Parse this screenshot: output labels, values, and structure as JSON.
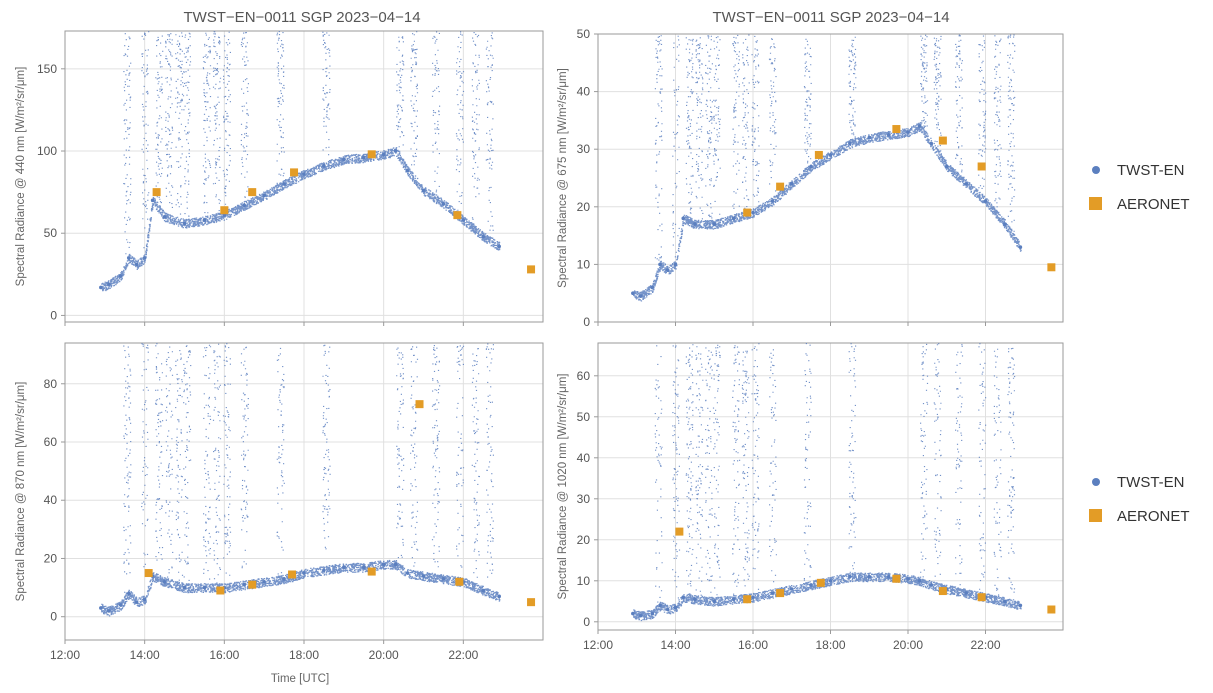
{
  "colors": {
    "twst": "#5b7fbf",
    "aeronet": "#e39c26"
  },
  "legends": [
    {
      "twst_label": "TWST-EN",
      "aeronet_label": "AERONET"
    },
    {
      "twst_label": "TWST-EN",
      "aeronet_label": "AERONET"
    }
  ],
  "chart_data": [
    {
      "type": "scatter",
      "title": "TWST−EN−0011 SGP 2023−04−14",
      "ylabel": "Spectral Radiance @ 440 nm [W/m²/sr/μm]",
      "xlabel": "",
      "xlim": [
        12.0,
        24.0
      ],
      "ylim": [
        -4,
        173
      ],
      "xticks": [
        12,
        14,
        16,
        18,
        20,
        22
      ],
      "xtick_labels": [
        "",
        "",
        "",
        "",
        "",
        ""
      ],
      "yticks": [
        0,
        50,
        100,
        150
      ],
      "ytick_labels": [
        "0",
        "50",
        "100",
        "150"
      ],
      "grid": true,
      "series": [
        {
          "name": "TWST-EN",
          "x": [
            12.9,
            13.1,
            13.4,
            13.6,
            13.8,
            14.0,
            14.2,
            14.5,
            15.0,
            15.5,
            16.0,
            16.5,
            17.0,
            17.5,
            18.0,
            18.5,
            19.0,
            19.5,
            20.0,
            20.3,
            20.6,
            21.0,
            21.5,
            22.0,
            22.5,
            22.9
          ],
          "y": [
            17,
            19,
            24,
            35,
            31,
            35,
            70,
            60,
            56,
            58,
            61,
            67,
            73,
            80,
            86,
            91,
            95,
            96,
            98,
            100,
            88,
            76,
            68,
            58,
            48,
            42
          ]
        },
        {
          "name": "AERONET",
          "x": [
            14.3,
            16.0,
            16.7,
            17.75,
            19.7,
            21.85,
            23.7
          ],
          "y": [
            75,
            64,
            75,
            87,
            98,
            61,
            28
          ]
        }
      ]
    },
    {
      "type": "scatter",
      "title": "TWST−EN−0011 SGP 2023−04−14",
      "ylabel": "Spectral Radiance @ 675 nm [W/m²/sr/μm]",
      "xlabel": "",
      "xlim": [
        12.0,
        24.0
      ],
      "ylim": [
        0,
        50
      ],
      "xticks": [
        12,
        14,
        16,
        18,
        20,
        22
      ],
      "xtick_labels": [
        "",
        "",
        "",
        "",
        "",
        ""
      ],
      "yticks": [
        0,
        10,
        20,
        30,
        40,
        50
      ],
      "ytick_labels": [
        "0",
        "10",
        "20",
        "30",
        "40",
        "50"
      ],
      "grid": true,
      "series": [
        {
          "name": "TWST-EN",
          "x": [
            12.9,
            13.1,
            13.4,
            13.6,
            13.8,
            14.0,
            14.2,
            14.5,
            15.0,
            15.5,
            16.0,
            16.5,
            17.0,
            17.5,
            18.0,
            18.5,
            19.0,
            19.5,
            20.0,
            20.3,
            20.6,
            21.0,
            21.5,
            22.0,
            22.5,
            22.9
          ],
          "y": [
            5,
            4.5,
            6,
            10,
            9,
            10,
            18,
            17,
            17,
            18,
            19,
            21,
            24,
            27,
            29,
            31,
            32,
            32.5,
            33,
            34,
            31,
            27,
            24,
            21,
            17,
            13
          ]
        },
        {
          "name": "AERONET",
          "x": [
            15.85,
            16.7,
            17.7,
            19.7,
            20.9,
            21.9,
            23.7
          ],
          "y": [
            19,
            23.5,
            29,
            33.5,
            31.5,
            27,
            9.5
          ]
        }
      ]
    },
    {
      "type": "scatter",
      "title": "",
      "ylabel": "Spectral Radiance @ 870 nm [W/m²/sr/μm]",
      "xlabel": "Time [UTC]",
      "xlim": [
        12.0,
        24.0
      ],
      "ylim": [
        -8,
        94
      ],
      "xticks": [
        12,
        14,
        16,
        18,
        20,
        22
      ],
      "xtick_labels": [
        "12:00",
        "14:00",
        "16:00",
        "18:00",
        "20:00",
        "22:00"
      ],
      "yticks": [
        0,
        20,
        40,
        60,
        80
      ],
      "ytick_labels": [
        "0",
        "20",
        "40",
        "60",
        "80"
      ],
      "grid": true,
      "series": [
        {
          "name": "TWST-EN",
          "x": [
            12.9,
            13.1,
            13.4,
            13.6,
            13.8,
            14.0,
            14.2,
            14.5,
            15.0,
            15.5,
            16.0,
            16.5,
            17.0,
            17.5,
            18.0,
            18.5,
            19.0,
            19.5,
            20.0,
            20.3,
            20.6,
            21.0,
            21.5,
            22.0,
            22.5,
            22.9
          ],
          "y": [
            3,
            2,
            4,
            8,
            5,
            6,
            14,
            12,
            10,
            10,
            10,
            11,
            12,
            13,
            15,
            16,
            17,
            17,
            18,
            18,
            15,
            14,
            13,
            12,
            9,
            7
          ]
        },
        {
          "name": "AERONET",
          "x": [
            14.1,
            15.9,
            16.7,
            17.7,
            19.7,
            20.9,
            21.9,
            23.7
          ],
          "y": [
            15,
            9,
            11,
            14.5,
            15.5,
            73,
            12,
            5
          ]
        }
      ]
    },
    {
      "type": "scatter",
      "title": "",
      "ylabel": "Spectral Radiance @ 1020 nm [W/m²/sr/μm]",
      "xlabel": "",
      "xlim": [
        12.0,
        24.0
      ],
      "ylim": [
        -2,
        68
      ],
      "xticks": [
        12,
        14,
        16,
        18,
        20,
        22
      ],
      "xtick_labels": [
        "12:00",
        "14:00",
        "16:00",
        "18:00",
        "20:00",
        "22:00"
      ],
      "yticks": [
        0,
        10,
        20,
        30,
        40,
        50,
        60
      ],
      "ytick_labels": [
        "0",
        "10",
        "20",
        "30",
        "40",
        "50",
        "60"
      ],
      "grid": true,
      "series": [
        {
          "name": "TWST-EN",
          "x": [
            12.9,
            13.1,
            13.4,
            13.6,
            13.8,
            14.0,
            14.2,
            14.5,
            15.0,
            15.5,
            16.0,
            16.5,
            17.0,
            17.5,
            18.0,
            18.5,
            19.0,
            19.5,
            20.0,
            20.3,
            20.6,
            21.0,
            21.5,
            22.0,
            22.5,
            22.9
          ],
          "y": [
            2,
            1.5,
            2,
            4,
            3,
            3.5,
            6,
            5.5,
            5,
            5.5,
            6,
            7,
            8,
            9,
            10,
            11,
            11,
            11,
            10.5,
            10,
            9,
            8,
            7,
            6,
            5,
            4
          ]
        },
        {
          "name": "AERONET",
          "x": [
            14.1,
            15.85,
            16.7,
            17.75,
            19.7,
            20.9,
            21.9,
            23.7
          ],
          "y": [
            22,
            5.5,
            7,
            9.5,
            10.5,
            7.5,
            6,
            3
          ]
        }
      ]
    }
  ]
}
